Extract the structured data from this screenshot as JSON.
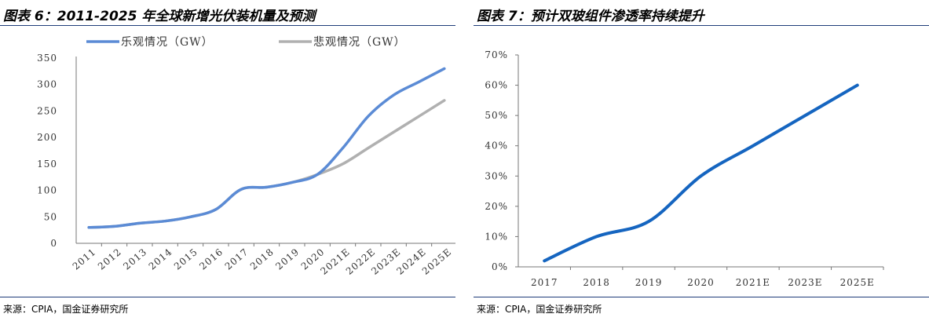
{
  "charts": [
    {
      "title": "图表 6：2011-2025 年全球新增光伏装机量及预测",
      "source": "来源：CPIA，国金证券研究所"
    },
    {
      "title": "图表 7：预计双玻组件渗透率持续提升",
      "source": "来源：CPIA，国金证券研究所"
    }
  ],
  "chart_data": [
    {
      "type": "line",
      "title": "图表 6：2011-2025 年全球新增光伏装机量及预测",
      "categories": [
        "2011",
        "2012",
        "2013",
        "2014",
        "2015",
        "2016",
        "2017",
        "2018",
        "2019",
        "2020",
        "2021E",
        "2022E",
        "2023E",
        "2024E",
        "2025E"
      ],
      "series": [
        {
          "name": "乐观情况（GW）",
          "color": "#5b8bd5",
          "values": [
            30,
            32,
            38,
            42,
            50,
            64,
            102,
            106,
            115,
            130,
            180,
            240,
            280,
            305,
            330
          ]
        },
        {
          "name": "悲观情况（GW）",
          "color": "#b0b0b0",
          "values": [
            30,
            32,
            38,
            42,
            50,
            64,
            102,
            106,
            115,
            130,
            150,
            180,
            210,
            240,
            270
          ]
        }
      ],
      "yticks": [
        "0",
        "50",
        "100",
        "150",
        "200",
        "250",
        "300",
        "350"
      ],
      "ylim": [
        0,
        350
      ],
      "legend": "top"
    },
    {
      "type": "line",
      "title": "图表 7：预计双玻组件渗透率持续提升",
      "categories": [
        "2017",
        "2018",
        "2019",
        "2020",
        "2021E",
        "2023E",
        "2025E"
      ],
      "series": [
        {
          "color": "#1565c0",
          "values": [
            0.02,
            0.1,
            0.15,
            0.3,
            0.4,
            0.5,
            0.6
          ]
        }
      ],
      "yticks": [
        "0%",
        "10%",
        "20%",
        "30%",
        "40%",
        "50%",
        "60%",
        "70%"
      ],
      "ylim": [
        0,
        0.7
      ]
    }
  ]
}
